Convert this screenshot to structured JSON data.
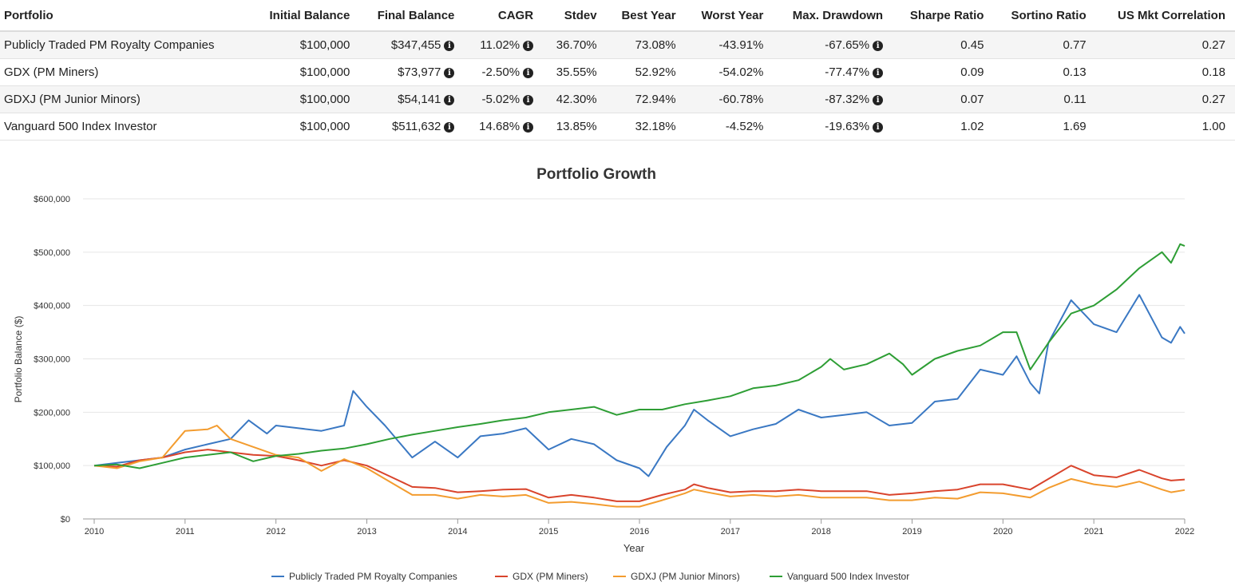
{
  "table": {
    "headers": [
      "Portfolio",
      "Initial Balance",
      "Final Balance",
      "CAGR",
      "Stdev",
      "Best Year",
      "Worst Year",
      "Max. Drawdown",
      "Sharpe Ratio",
      "Sortino Ratio",
      "US Mkt Correlation"
    ],
    "info_glyph": "i",
    "rows": [
      {
        "portfolio": "Publicly Traded PM Royalty Companies",
        "initial": "$100,000",
        "final": "$347,455",
        "cagr": "11.02%",
        "stdev": "36.70%",
        "best": "73.08%",
        "worst": "-43.91%",
        "maxdd": "-67.65%",
        "sharpe": "0.45",
        "sortino": "0.77",
        "corr": "0.27"
      },
      {
        "portfolio": "GDX (PM Miners)",
        "initial": "$100,000",
        "final": "$73,977",
        "cagr": "-2.50%",
        "stdev": "35.55%",
        "best": "52.92%",
        "worst": "-54.02%",
        "maxdd": "-77.47%",
        "sharpe": "0.09",
        "sortino": "0.13",
        "corr": "0.18"
      },
      {
        "portfolio": "GDXJ (PM Junior Minors)",
        "initial": "$100,000",
        "final": "$54,141",
        "cagr": "-5.02%",
        "stdev": "42.30%",
        "best": "72.94%",
        "worst": "-60.78%",
        "maxdd": "-87.32%",
        "sharpe": "0.07",
        "sortino": "0.11",
        "corr": "0.27"
      },
      {
        "portfolio": "Vanguard 500 Index Investor",
        "initial": "$100,000",
        "final": "$511,632",
        "cagr": "14.68%",
        "stdev": "13.85%",
        "best": "32.18%",
        "worst": "-4.52%",
        "maxdd": "-19.63%",
        "sharpe": "1.02",
        "sortino": "1.69",
        "corr": "1.00"
      }
    ]
  },
  "chart_data": {
    "type": "line",
    "title": "Portfolio Growth",
    "xlabel": "Year",
    "ylabel": "Portfolio Balance ($)",
    "xlim": [
      2010,
      2022
    ],
    "ylim": [
      0,
      600000
    ],
    "x_ticks": [
      "2010",
      "2011",
      "2012",
      "2013",
      "2014",
      "2015",
      "2016",
      "2017",
      "2018",
      "2019",
      "2020",
      "2021",
      "2022"
    ],
    "y_ticks": [
      "$0",
      "$100,000",
      "$200,000",
      "$300,000",
      "$400,000",
      "$500,000",
      "$600,000"
    ],
    "grid": true,
    "legend_position": "bottom",
    "series": [
      {
        "name": "Publicly Traded PM Royalty Companies",
        "color": "#3a78c3",
        "points": [
          [
            2010.0,
            100000
          ],
          [
            2010.25,
            105000
          ],
          [
            2010.5,
            110000
          ],
          [
            2010.75,
            115000
          ],
          [
            2011.0,
            130000
          ],
          [
            2011.25,
            140000
          ],
          [
            2011.5,
            150000
          ],
          [
            2011.7,
            185000
          ],
          [
            2011.9,
            160000
          ],
          [
            2012.0,
            175000
          ],
          [
            2012.25,
            170000
          ],
          [
            2012.5,
            165000
          ],
          [
            2012.75,
            175000
          ],
          [
            2012.85,
            240000
          ],
          [
            2013.0,
            210000
          ],
          [
            2013.2,
            175000
          ],
          [
            2013.35,
            145000
          ],
          [
            2013.5,
            115000
          ],
          [
            2013.75,
            145000
          ],
          [
            2014.0,
            115000
          ],
          [
            2014.25,
            155000
          ],
          [
            2014.5,
            160000
          ],
          [
            2014.75,
            170000
          ],
          [
            2015.0,
            130000
          ],
          [
            2015.25,
            150000
          ],
          [
            2015.5,
            140000
          ],
          [
            2015.75,
            110000
          ],
          [
            2016.0,
            95000
          ],
          [
            2016.1,
            80000
          ],
          [
            2016.3,
            135000
          ],
          [
            2016.5,
            175000
          ],
          [
            2016.6,
            205000
          ],
          [
            2016.75,
            185000
          ],
          [
            2017.0,
            155000
          ],
          [
            2017.25,
            168000
          ],
          [
            2017.5,
            178000
          ],
          [
            2017.75,
            205000
          ],
          [
            2018.0,
            190000
          ],
          [
            2018.25,
            195000
          ],
          [
            2018.5,
            200000
          ],
          [
            2018.75,
            175000
          ],
          [
            2019.0,
            180000
          ],
          [
            2019.25,
            220000
          ],
          [
            2019.5,
            225000
          ],
          [
            2019.75,
            280000
          ],
          [
            2020.0,
            270000
          ],
          [
            2020.15,
            305000
          ],
          [
            2020.3,
            255000
          ],
          [
            2020.4,
            235000
          ],
          [
            2020.5,
            330000
          ],
          [
            2020.75,
            410000
          ],
          [
            2021.0,
            365000
          ],
          [
            2021.25,
            350000
          ],
          [
            2021.5,
            420000
          ],
          [
            2021.75,
            340000
          ],
          [
            2021.85,
            330000
          ],
          [
            2021.95,
            360000
          ],
          [
            2022.0,
            347455
          ]
        ]
      },
      {
        "name": "GDX (PM Miners)",
        "color": "#d9442c",
        "points": [
          [
            2010.0,
            100000
          ],
          [
            2010.25,
            98000
          ],
          [
            2010.5,
            110000
          ],
          [
            2010.75,
            115000
          ],
          [
            2011.0,
            125000
          ],
          [
            2011.25,
            130000
          ],
          [
            2011.5,
            125000
          ],
          [
            2011.75,
            120000
          ],
          [
            2012.0,
            118000
          ],
          [
            2012.25,
            110000
          ],
          [
            2012.5,
            100000
          ],
          [
            2012.75,
            110000
          ],
          [
            2013.0,
            100000
          ],
          [
            2013.25,
            80000
          ],
          [
            2013.5,
            60000
          ],
          [
            2013.75,
            58000
          ],
          [
            2014.0,
            50000
          ],
          [
            2014.25,
            52000
          ],
          [
            2014.5,
            55000
          ],
          [
            2014.75,
            56000
          ],
          [
            2015.0,
            40000
          ],
          [
            2015.25,
            45000
          ],
          [
            2015.5,
            40000
          ],
          [
            2015.75,
            33000
          ],
          [
            2016.0,
            33000
          ],
          [
            2016.25,
            45000
          ],
          [
            2016.5,
            55000
          ],
          [
            2016.6,
            65000
          ],
          [
            2016.75,
            58000
          ],
          [
            2017.0,
            50000
          ],
          [
            2017.25,
            52000
          ],
          [
            2017.5,
            52000
          ],
          [
            2017.75,
            55000
          ],
          [
            2018.0,
            52000
          ],
          [
            2018.25,
            52000
          ],
          [
            2018.5,
            52000
          ],
          [
            2018.75,
            45000
          ],
          [
            2019.0,
            48000
          ],
          [
            2019.25,
            52000
          ],
          [
            2019.5,
            55000
          ],
          [
            2019.75,
            65000
          ],
          [
            2020.0,
            65000
          ],
          [
            2020.3,
            55000
          ],
          [
            2020.5,
            75000
          ],
          [
            2020.75,
            100000
          ],
          [
            2021.0,
            82000
          ],
          [
            2021.25,
            78000
          ],
          [
            2021.5,
            92000
          ],
          [
            2021.75,
            76000
          ],
          [
            2021.85,
            72000
          ],
          [
            2022.0,
            73977
          ]
        ]
      },
      {
        "name": "GDXJ (PM Junior Minors)",
        "color": "#f39c2f",
        "points": [
          [
            2010.0,
            100000
          ],
          [
            2010.25,
            95000
          ],
          [
            2010.5,
            108000
          ],
          [
            2010.75,
            115000
          ],
          [
            2011.0,
            165000
          ],
          [
            2011.25,
            168000
          ],
          [
            2011.35,
            175000
          ],
          [
            2011.5,
            150000
          ],
          [
            2011.75,
            135000
          ],
          [
            2012.0,
            120000
          ],
          [
            2012.25,
            115000
          ],
          [
            2012.5,
            90000
          ],
          [
            2012.75,
            112000
          ],
          [
            2013.0,
            95000
          ],
          [
            2013.25,
            70000
          ],
          [
            2013.5,
            45000
          ],
          [
            2013.75,
            45000
          ],
          [
            2014.0,
            38000
          ],
          [
            2014.25,
            45000
          ],
          [
            2014.5,
            42000
          ],
          [
            2014.75,
            45000
          ],
          [
            2015.0,
            30000
          ],
          [
            2015.25,
            32000
          ],
          [
            2015.5,
            28000
          ],
          [
            2015.75,
            23000
          ],
          [
            2016.0,
            23000
          ],
          [
            2016.25,
            35000
          ],
          [
            2016.5,
            48000
          ],
          [
            2016.6,
            55000
          ],
          [
            2016.75,
            50000
          ],
          [
            2017.0,
            42000
          ],
          [
            2017.25,
            45000
          ],
          [
            2017.5,
            42000
          ],
          [
            2017.75,
            45000
          ],
          [
            2018.0,
            40000
          ],
          [
            2018.25,
            40000
          ],
          [
            2018.5,
            40000
          ],
          [
            2018.75,
            35000
          ],
          [
            2019.0,
            35000
          ],
          [
            2019.25,
            40000
          ],
          [
            2019.5,
            38000
          ],
          [
            2019.75,
            50000
          ],
          [
            2020.0,
            48000
          ],
          [
            2020.3,
            40000
          ],
          [
            2020.5,
            58000
          ],
          [
            2020.75,
            75000
          ],
          [
            2021.0,
            65000
          ],
          [
            2021.25,
            60000
          ],
          [
            2021.5,
            70000
          ],
          [
            2021.75,
            55000
          ],
          [
            2021.85,
            50000
          ],
          [
            2022.0,
            54141
          ]
        ]
      },
      {
        "name": "Vanguard 500 Index Investor",
        "color": "#2e9e35",
        "points": [
          [
            2010.0,
            100000
          ],
          [
            2010.25,
            102000
          ],
          [
            2010.5,
            95000
          ],
          [
            2010.75,
            105000
          ],
          [
            2011.0,
            115000
          ],
          [
            2011.25,
            120000
          ],
          [
            2011.5,
            125000
          ],
          [
            2011.75,
            108000
          ],
          [
            2012.0,
            118000
          ],
          [
            2012.25,
            122000
          ],
          [
            2012.5,
            128000
          ],
          [
            2012.75,
            132000
          ],
          [
            2013.0,
            140000
          ],
          [
            2013.25,
            150000
          ],
          [
            2013.5,
            158000
          ],
          [
            2013.75,
            165000
          ],
          [
            2014.0,
            172000
          ],
          [
            2014.25,
            178000
          ],
          [
            2014.5,
            185000
          ],
          [
            2014.75,
            190000
          ],
          [
            2015.0,
            200000
          ],
          [
            2015.25,
            205000
          ],
          [
            2015.5,
            210000
          ],
          [
            2015.75,
            195000
          ],
          [
            2016.0,
            205000
          ],
          [
            2016.25,
            205000
          ],
          [
            2016.5,
            215000
          ],
          [
            2016.75,
            222000
          ],
          [
            2017.0,
            230000
          ],
          [
            2017.25,
            245000
          ],
          [
            2017.5,
            250000
          ],
          [
            2017.75,
            260000
          ],
          [
            2018.0,
            285000
          ],
          [
            2018.1,
            300000
          ],
          [
            2018.25,
            280000
          ],
          [
            2018.5,
            290000
          ],
          [
            2018.75,
            310000
          ],
          [
            2018.9,
            290000
          ],
          [
            2019.0,
            270000
          ],
          [
            2019.25,
            300000
          ],
          [
            2019.5,
            315000
          ],
          [
            2019.75,
            325000
          ],
          [
            2020.0,
            350000
          ],
          [
            2020.15,
            350000
          ],
          [
            2020.3,
            280000
          ],
          [
            2020.5,
            330000
          ],
          [
            2020.75,
            385000
          ],
          [
            2021.0,
            400000
          ],
          [
            2021.25,
            430000
          ],
          [
            2021.5,
            470000
          ],
          [
            2021.75,
            500000
          ],
          [
            2021.85,
            480000
          ],
          [
            2021.95,
            515000
          ],
          [
            2022.0,
            511632
          ]
        ]
      }
    ]
  }
}
